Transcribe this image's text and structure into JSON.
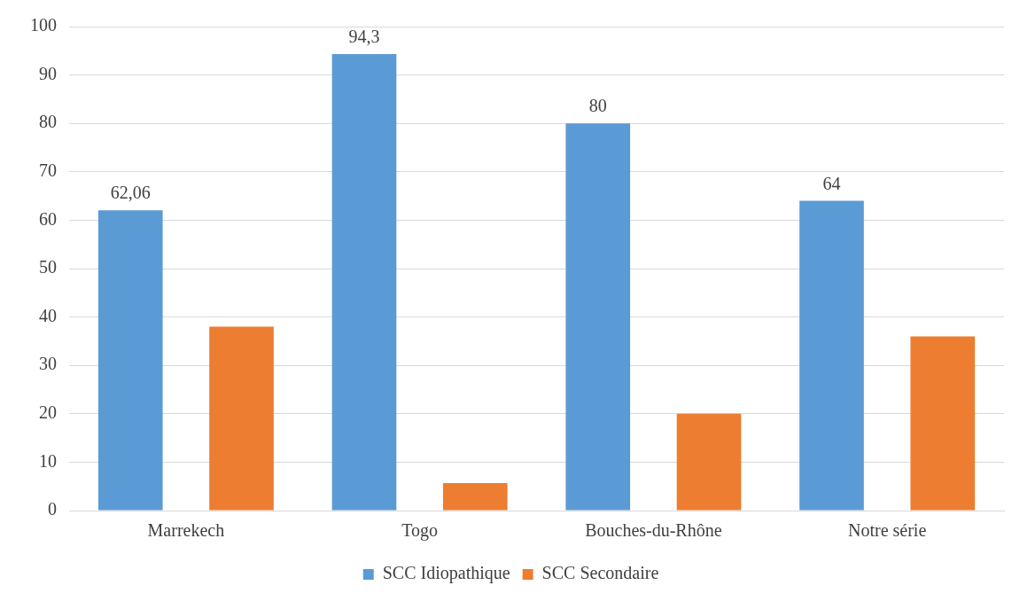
{
  "chart_data": {
    "type": "bar",
    "categories": [
      "Marrekech",
      "Togo",
      "Bouches-du-Rhône",
      "Notre série"
    ],
    "series": [
      {
        "name": "SCC Idiopathique",
        "color": "#5b9bd5",
        "values": [
          62.06,
          94.3,
          80,
          64
        ],
        "value_labels": [
          "62,06",
          "94,3",
          "80",
          "64"
        ]
      },
      {
        "name": "SCC Secondaire",
        "color": "#ed7d31",
        "values": [
          38,
          5.7,
          20,
          36
        ]
      }
    ],
    "ylim": [
      0,
      100
    ],
    "yticks": [
      0,
      10,
      20,
      30,
      40,
      50,
      60,
      70,
      80,
      90,
      100
    ],
    "grid": "y",
    "legend": "bottom"
  }
}
